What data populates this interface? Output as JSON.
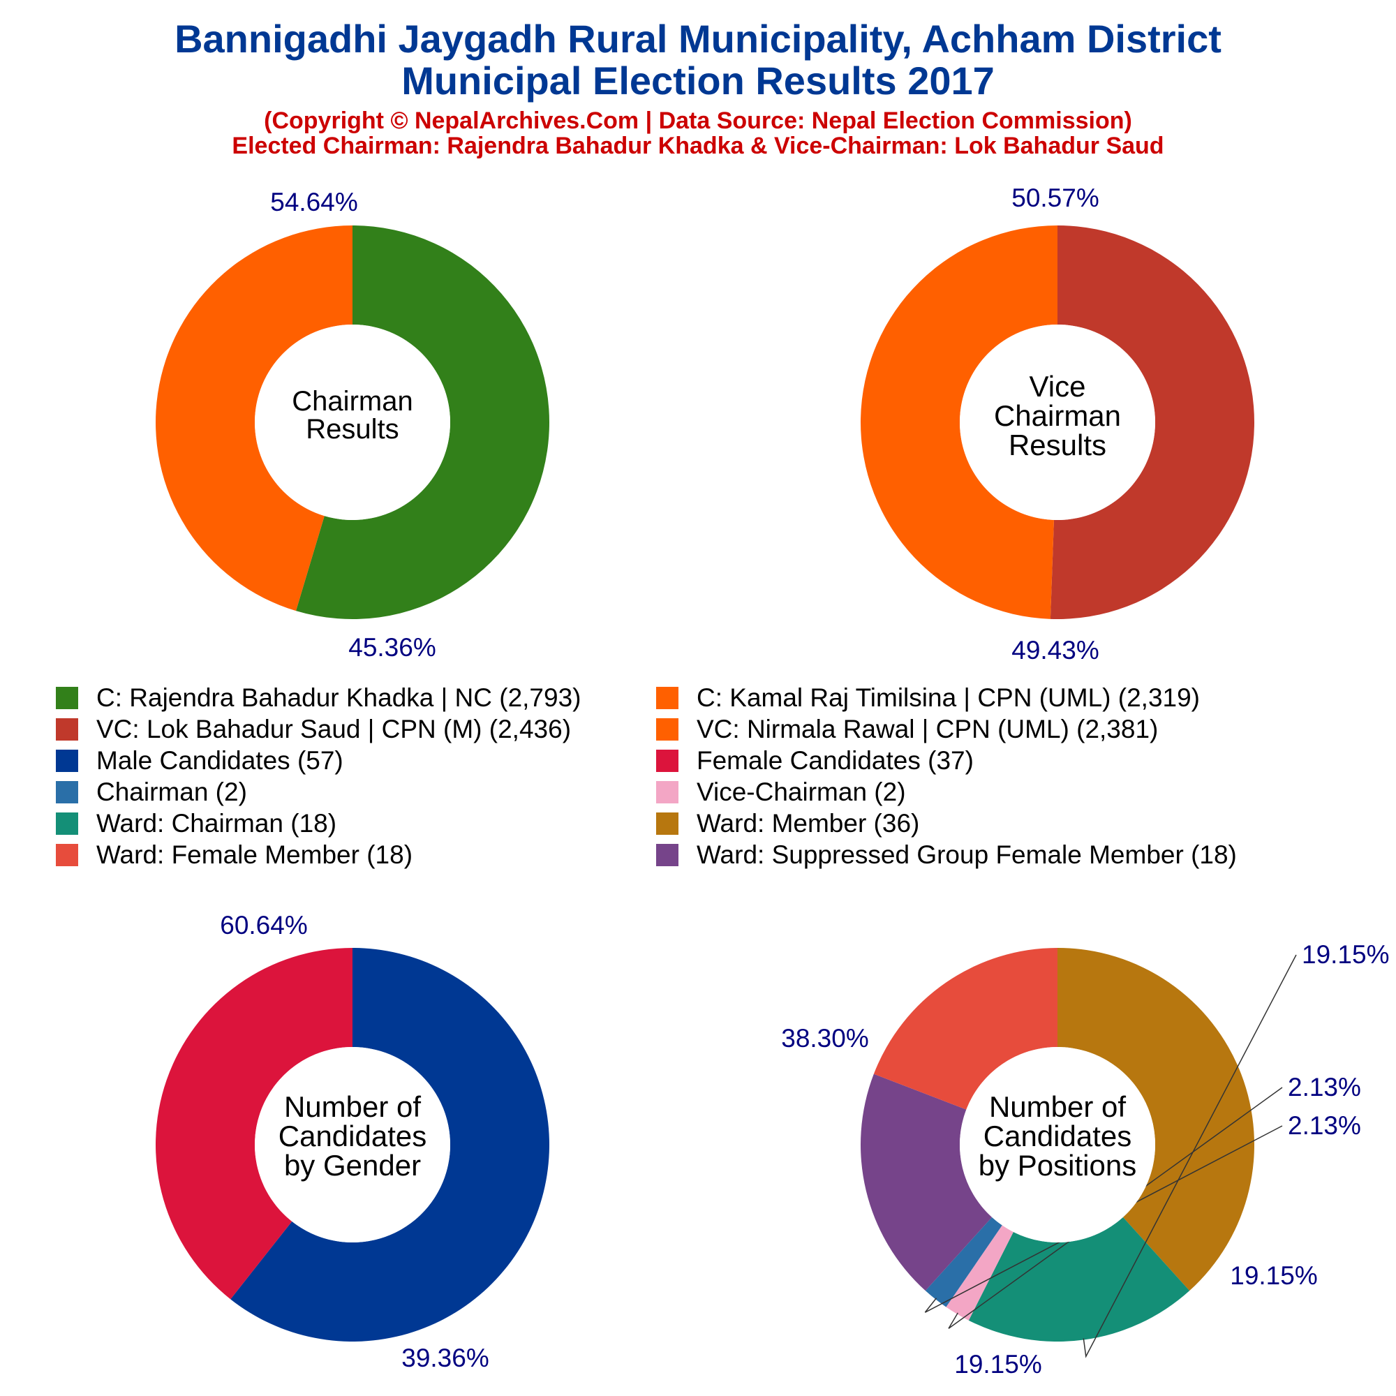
{
  "header": {
    "title_line1": "Bannigadhi Jaygadh Rural Municipality, Achham District",
    "title_line2": "Municipal Election Results 2017",
    "subtitle_line1": "(Copyright © NepalArchives.Com | Data Source: Nepal Election Commission)",
    "subtitle_line2": "Elected Chairman: Rajendra Bahadur Khadka & Vice-Chairman: Lok Bahadur Saud"
  },
  "legend": {
    "items": [
      {
        "label": "C: Rajendra Bahadur Khadka | NC (2,793)",
        "color": "#32801a"
      },
      {
        "label": "C: Kamal Raj Timilsina | CPN (UML) (2,319)",
        "color": "#ff6000"
      },
      {
        "label": "VC: Lok Bahadur Saud | CPN (M) (2,436)",
        "color": "#c0392b"
      },
      {
        "label": "VC: Nirmala Rawal | CPN (UML) (2,381)",
        "color": "#ff6000"
      },
      {
        "label": "Male Candidates (57)",
        "color": "#003893"
      },
      {
        "label": "Female Candidates (37)",
        "color": "#dc143c"
      },
      {
        "label": "Chairman (2)",
        "color": "#2a6fa8"
      },
      {
        "label": "Vice-Chairman (2)",
        "color": "#f3a6c5"
      },
      {
        "label": "Ward: Chairman (18)",
        "color": "#148f77"
      },
      {
        "label": "Ward: Member (36)",
        "color": "#b7770f"
      },
      {
        "label": "Ward: Female Member (18)",
        "color": "#e74c3c"
      },
      {
        "label": "Ward: Suppressed Group Female Member (18)",
        "color": "#76448a"
      }
    ]
  },
  "chart_data": [
    {
      "type": "pie",
      "donut": true,
      "center_label": [
        "Chairman",
        "Results"
      ],
      "slices": [
        {
          "name": "C: Rajendra Bahadur Khadka | NC",
          "value": 2793,
          "label": "54.64%",
          "color": "#32801a"
        },
        {
          "name": "C: Kamal Raj Timilsina | CPN (UML)",
          "value": 2319,
          "label": "45.36%",
          "color": "#ff6000"
        }
      ]
    },
    {
      "type": "pie",
      "donut": true,
      "center_label": [
        "Vice",
        "Chairman",
        "Results"
      ],
      "slices": [
        {
          "name": "VC: Lok Bahadur Saud | CPN (M)",
          "value": 2436,
          "label": "50.57%",
          "color": "#c0392b"
        },
        {
          "name": "VC: Nirmala Rawal | CPN (UML)",
          "value": 2381,
          "label": "49.43%",
          "color": "#ff6000"
        }
      ]
    },
    {
      "type": "pie",
      "donut": true,
      "center_label": [
        "Number of",
        "Candidates",
        "by Gender"
      ],
      "slices": [
        {
          "name": "Male Candidates",
          "value": 57,
          "label": "60.64%",
          "color": "#003893"
        },
        {
          "name": "Female Candidates",
          "value": 37,
          "label": "39.36%",
          "color": "#dc143c"
        }
      ]
    },
    {
      "type": "pie",
      "donut": true,
      "center_label": [
        "Number of",
        "Candidates",
        "by Positions"
      ],
      "slices": [
        {
          "name": "Ward: Member",
          "value": 36,
          "label": "38.30%",
          "color": "#b7770f"
        },
        {
          "name": "Ward: Chairman",
          "value": 18,
          "label": "19.15%",
          "color": "#148f77"
        },
        {
          "name": "Vice-Chairman",
          "value": 2,
          "label": "2.13%",
          "color": "#f3a6c5"
        },
        {
          "name": "Chairman",
          "value": 2,
          "label": "2.13%",
          "color": "#2a6fa8"
        },
        {
          "name": "Ward: Suppressed Group Female Member",
          "value": 18,
          "label": "19.15%",
          "color": "#76448a"
        },
        {
          "name": "Ward: Female Member",
          "value": 18,
          "label": "19.15%",
          "color": "#e74c3c"
        }
      ]
    }
  ]
}
